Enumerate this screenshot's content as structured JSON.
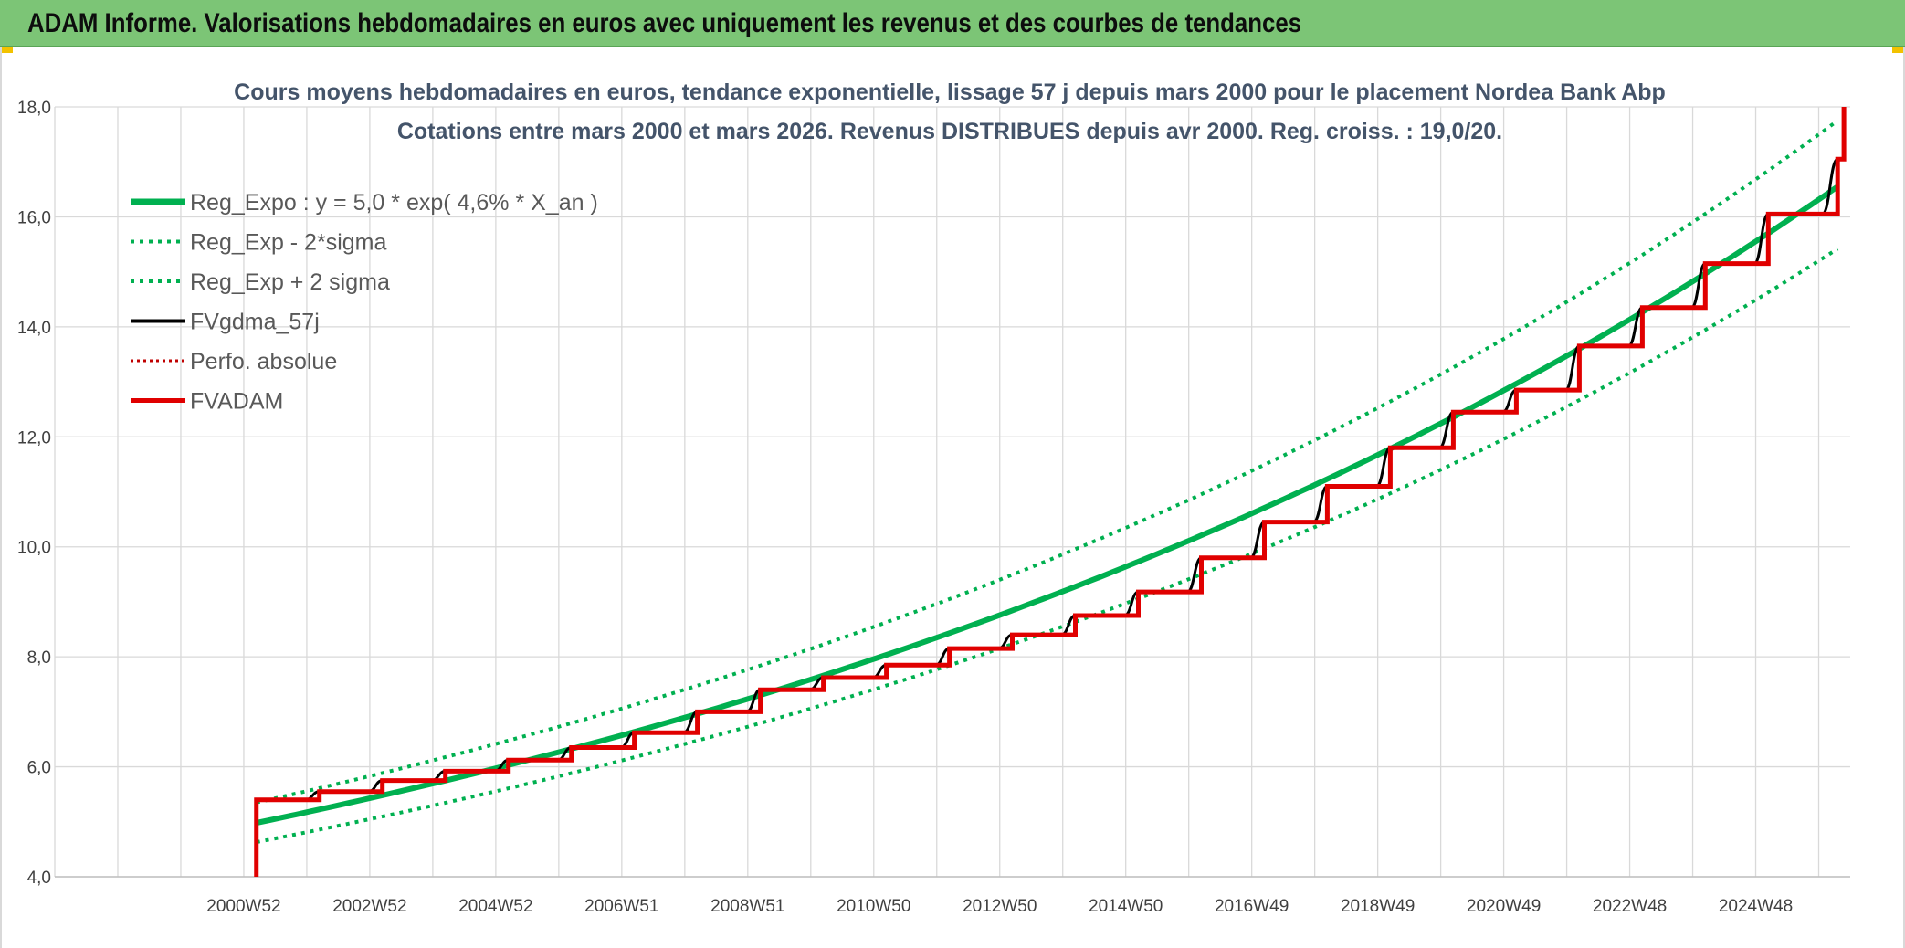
{
  "banner": {
    "title": "ADAM Informe. Valorisations hebdomadaires en euros avec uniquement les revenus et des courbes de tendances",
    "background": "#7cc576"
  },
  "chart_data": {
    "type": "line",
    "title_line1": "Cours moyens hebdomadaires en euros, tendance exponentielle, lissage 57 j depuis mars 2000 pour le placement Nordea Bank Abp",
    "title_line2": "Cotations entre mars 2000 et mars 2026. Revenus DISTRIBUES depuis avr 2000. Reg. croiss. : 19,0/20.",
    "ylim": [
      4.0,
      18.0
    ],
    "yticks": [
      "4,0",
      "6,0",
      "8,0",
      "10,0",
      "12,0",
      "14,0",
      "16,0",
      "18,0"
    ],
    "xticks": [
      "2000W52",
      "2002W52",
      "2004W52",
      "2006W51",
      "2008W51",
      "2010W50",
      "2012W50",
      "2014W50",
      "2016W49",
      "2018W49",
      "2020W49",
      "2022W48",
      "2024W48"
    ],
    "x_range_years": [
      1998.0,
      2026.5
    ],
    "grid": true,
    "legend_position": "top-left",
    "series": [
      {
        "name": "Reg_Expo : y = 5,0 * exp( 4,6% *  X_an )",
        "color": "#00b050",
        "style": "solid-thick",
        "x": [
          2001.2,
          2026.3
        ],
        "y": [
          4.98,
          16.55
        ]
      },
      {
        "name": "Reg_Exp - 2*sigma",
        "color": "#00b050",
        "style": "dotted",
        "x": [
          2001.2,
          2026.3
        ],
        "y": [
          4.63,
          15.42
        ]
      },
      {
        "name": "Reg_Exp + 2 sigma",
        "color": "#00b050",
        "style": "dotted",
        "x": [
          2001.2,
          2026.3
        ],
        "y": [
          5.35,
          17.75
        ]
      },
      {
        "name": "FVgdma_57j",
        "color": "#000000",
        "style": "smooth-step",
        "x": [
          2001.2,
          2002.2,
          2003.2,
          2004.2,
          2005.2,
          2006.2,
          2007.2,
          2008.2,
          2009.2,
          2010.2,
          2011.2,
          2012.2,
          2013.2,
          2014.2,
          2015.2,
          2016.2,
          2017.2,
          2018.2,
          2019.2,
          2020.2,
          2021.2,
          2022.2,
          2023.2,
          2024.2,
          2025.2,
          2026.3
        ],
        "y": [
          5.4,
          5.55,
          5.75,
          5.92,
          6.12,
          6.35,
          6.62,
          7.0,
          7.4,
          7.62,
          7.85,
          8.15,
          8.4,
          8.75,
          9.18,
          9.8,
          10.45,
          11.1,
          11.8,
          12.45,
          12.85,
          13.65,
          14.35,
          15.15,
          16.05,
          17.05
        ]
      },
      {
        "name": "Perfo. absolue",
        "color": "#c00000",
        "style": "dotted",
        "x": [],
        "y": []
      },
      {
        "name": "FVADAM",
        "color": "#e00000",
        "style": "step-thick",
        "x": [
          2001.2,
          2002.2,
          2003.2,
          2004.2,
          2005.2,
          2006.2,
          2007.2,
          2008.2,
          2009.2,
          2010.2,
          2011.2,
          2012.2,
          2013.2,
          2014.2,
          2015.2,
          2016.2,
          2017.2,
          2018.2,
          2019.2,
          2020.2,
          2021.2,
          2022.2,
          2023.2,
          2024.2,
          2025.2,
          2026.3
        ],
        "y": [
          5.4,
          5.55,
          5.75,
          5.92,
          6.12,
          6.35,
          6.62,
          7.0,
          7.4,
          7.62,
          7.85,
          8.15,
          8.4,
          8.75,
          9.18,
          9.8,
          10.45,
          11.1,
          11.8,
          12.45,
          12.85,
          13.65,
          14.35,
          15.15,
          16.05,
          17.05
        ]
      }
    ]
  }
}
